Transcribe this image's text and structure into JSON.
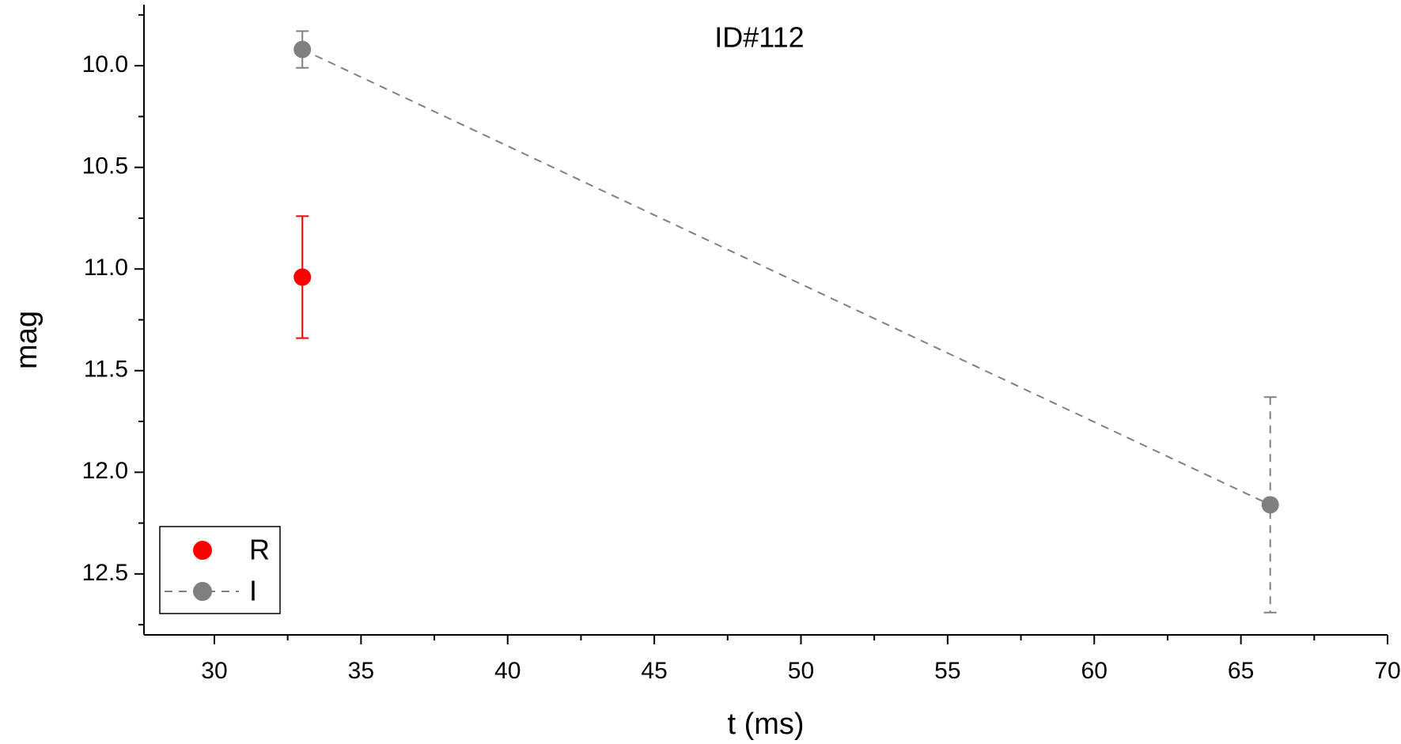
{
  "chart_data": {
    "type": "scatter",
    "title": "ID#112",
    "x_label": "t (ms)",
    "y_label": "mag",
    "xlim": [
      27.6,
      70
    ],
    "xticks": [
      30,
      35,
      40,
      45,
      50,
      55,
      60,
      65,
      70
    ],
    "xminorticks": [
      27.5,
      32.5,
      37.5,
      42.5,
      47.5,
      52.5,
      57.5,
      62.5,
      67.5
    ],
    "ylim": [
      9.7,
      12.8
    ],
    "y_inverted": true,
    "yticks": [
      {
        "value": 10,
        "label": "10.0"
      },
      {
        "value": 10.5,
        "label": "10.5"
      },
      {
        "value": 11,
        "label": "11.0"
      },
      {
        "value": 11.5,
        "label": "11.5"
      },
      {
        "value": 12,
        "label": "12.0"
      },
      {
        "value": 12.5,
        "label": "12.5"
      }
    ],
    "yminorticks": [
      9.75,
      10.25,
      10.75,
      11.25,
      11.75,
      12.25,
      12.75
    ],
    "legend": "lower left",
    "series": [
      {
        "name": "R",
        "color": "#ff0000",
        "x": [
          33
        ],
        "values": [
          11.04
        ],
        "errors": [
          0.3
        ],
        "line": "none"
      },
      {
        "name": "I",
        "color": "#808080",
        "x": [
          33,
          66
        ],
        "values": [
          9.92,
          12.16
        ],
        "errors": [
          0.09,
          0.53
        ],
        "line": "dashed"
      }
    ]
  }
}
